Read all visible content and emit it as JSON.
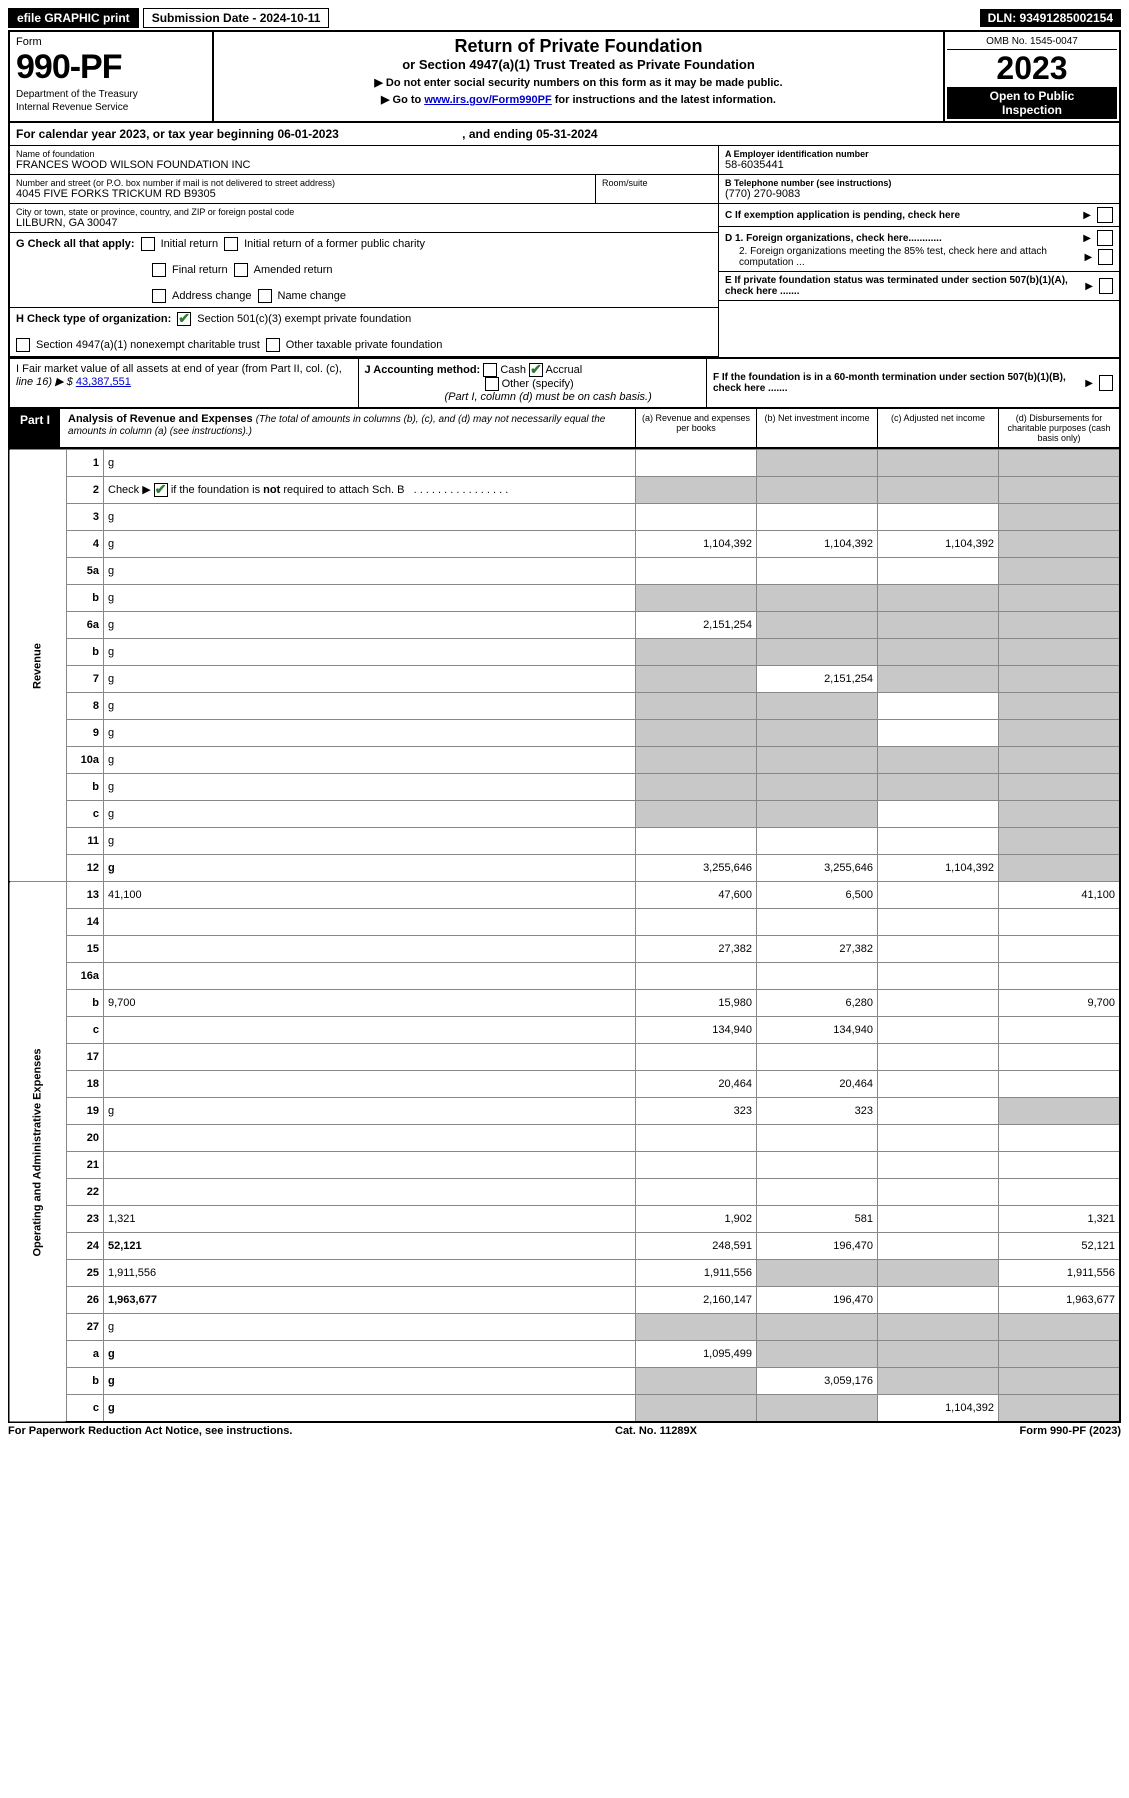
{
  "top": {
    "efile": "efile GRAPHIC print",
    "sub_label": "Submission Date - 2024-10-11",
    "dln": "DLN: 93491285002154"
  },
  "header": {
    "form_label": "Form",
    "form_num": "990-PF",
    "dept1": "Department of the Treasury",
    "dept2": "Internal Revenue Service",
    "title": "Return of Private Foundation",
    "subtitle": "or Section 4947(a)(1) Trust Treated as Private Foundation",
    "note1": "▶ Do not enter social security numbers on this form as it may be made public.",
    "note2_pre": "▶ Go to ",
    "note2_link": "www.irs.gov/Form990PF",
    "note2_post": " for instructions and the latest information.",
    "omb": "OMB No. 1545-0047",
    "year": "2023",
    "open1": "Open to Public",
    "open2": "Inspection"
  },
  "calyear": {
    "text_a": "For calendar year 2023, or tax year beginning 06-01-2023",
    "text_b": ", and ending 05-31-2024"
  },
  "info": {
    "name_lbl": "Name of foundation",
    "name": "FRANCES WOOD WILSON FOUNDATION INC",
    "addr_lbl": "Number and street (or P.O. box number if mail is not delivered to street address)",
    "addr": "4045 FIVE FORKS TRICKUM RD B9305",
    "room_lbl": "Room/suite",
    "city_lbl": "City or town, state or province, country, and ZIP or foreign postal code",
    "city": "LILBURN, GA  30047",
    "ein_lbl": "A Employer identification number",
    "ein": "58-6035441",
    "tel_lbl": "B Telephone number (see instructions)",
    "tel": "(770) 270-9083",
    "c": "C If exemption application is pending, check here",
    "d1": "D 1. Foreign organizations, check here............",
    "d2": "2. Foreign organizations meeting the 85% test, check here and attach computation ...",
    "e": "E  If private foundation status was terminated under section 507(b)(1)(A), check here .......",
    "f": "F  If the foundation is in a 60-month termination under section 507(b)(1)(B), check here .......",
    "g_lbl": "G Check all that apply:",
    "g_opts": [
      "Initial return",
      "Initial return of a former public charity",
      "Final return",
      "Amended return",
      "Address change",
      "Name change"
    ],
    "h_lbl": "H Check type of organization:",
    "h1": "Section 501(c)(3) exempt private foundation",
    "h2": "Section 4947(a)(1) nonexempt charitable trust",
    "h3": "Other taxable private foundation",
    "i_lbl": "I Fair market value of all assets at end of year (from Part II, col. (c),",
    "i_line": "line 16) ▶ $",
    "i_val": "43,387,551",
    "j_lbl": "J Accounting method:",
    "j_cash": "Cash",
    "j_accr": "Accrual",
    "j_other": "Other (specify)",
    "j_note": "(Part I, column (d) must be on cash basis.)"
  },
  "part1": {
    "label": "Part I",
    "title": "Analysis of Revenue and Expenses",
    "note": "(The total of amounts in columns (b), (c), and (d) may not necessarily equal the amounts in column (a) (see instructions).)",
    "col_a": "(a)   Revenue and expenses per books",
    "col_b": "(b)   Net investment income",
    "col_c": "(c)   Adjusted net income",
    "col_d": "(d)   Disbursements for charitable purposes (cash basis only)"
  },
  "sides": {
    "rev": "Revenue",
    "oae": "Operating and Administrative Expenses"
  },
  "rows": [
    {
      "n": "1",
      "d": "g",
      "a": "",
      "b": "g",
      "c": "g"
    },
    {
      "n": "2",
      "d": "g",
      "a": "g",
      "b": "g",
      "c": "g"
    },
    {
      "n": "3",
      "d": "g",
      "a": "",
      "b": "",
      "c": ""
    },
    {
      "n": "4",
      "d": "g",
      "a": "1,104,392",
      "b": "1,104,392",
      "c": "1,104,392"
    },
    {
      "n": "5a",
      "d": "g",
      "a": "",
      "b": "",
      "c": ""
    },
    {
      "n": "b",
      "d": "g",
      "a": "g",
      "b": "g",
      "c": "g"
    },
    {
      "n": "6a",
      "d": "g",
      "a": "2,151,254",
      "b": "g",
      "c": "g"
    },
    {
      "n": "b",
      "d": "g",
      "a": "g",
      "b": "g",
      "c": "g"
    },
    {
      "n": "7",
      "d": "g",
      "a": "g",
      "b": "2,151,254",
      "c": "g"
    },
    {
      "n": "8",
      "d": "g",
      "a": "g",
      "b": "g",
      "c": ""
    },
    {
      "n": "9",
      "d": "g",
      "a": "g",
      "b": "g",
      "c": ""
    },
    {
      "n": "10a",
      "d": "g",
      "a": "g",
      "b": "g",
      "c": "g"
    },
    {
      "n": "b",
      "d": "g",
      "a": "g",
      "b": "g",
      "c": "g"
    },
    {
      "n": "c",
      "d": "g",
      "a": "g",
      "b": "g",
      "c": ""
    },
    {
      "n": "11",
      "d": "g",
      "a": "",
      "b": "",
      "c": ""
    },
    {
      "n": "12",
      "d": "g",
      "a": "3,255,646",
      "b": "3,255,646",
      "c": "1,104,392",
      "bold": true
    },
    {
      "n": "13",
      "d": "41,100",
      "a": "47,600",
      "b": "6,500",
      "c": ""
    },
    {
      "n": "14",
      "d": "",
      "a": "",
      "b": "",
      "c": ""
    },
    {
      "n": "15",
      "d": "",
      "a": "27,382",
      "b": "27,382",
      "c": ""
    },
    {
      "n": "16a",
      "d": "",
      "a": "",
      "b": "",
      "c": ""
    },
    {
      "n": "b",
      "d": "9,700",
      "a": "15,980",
      "b": "6,280",
      "c": ""
    },
    {
      "n": "c",
      "d": "",
      "a": "134,940",
      "b": "134,940",
      "c": ""
    },
    {
      "n": "17",
      "d": "",
      "a": "",
      "b": "",
      "c": ""
    },
    {
      "n": "18",
      "d": "",
      "a": "20,464",
      "b": "20,464",
      "c": ""
    },
    {
      "n": "19",
      "d": "g",
      "a": "323",
      "b": "323",
      "c": ""
    },
    {
      "n": "20",
      "d": "",
      "a": "",
      "b": "",
      "c": ""
    },
    {
      "n": "21",
      "d": "",
      "a": "",
      "b": "",
      "c": ""
    },
    {
      "n": "22",
      "d": "",
      "a": "",
      "b": "",
      "c": ""
    },
    {
      "n": "23",
      "d": "1,321",
      "a": "1,902",
      "b": "581",
      "c": ""
    },
    {
      "n": "24",
      "d": "52,121",
      "a": "248,591",
      "b": "196,470",
      "c": "",
      "bold": true
    },
    {
      "n": "25",
      "d": "1,911,556",
      "a": "1,911,556",
      "b": "g",
      "c": "g"
    },
    {
      "n": "26",
      "d": "1,963,677",
      "a": "2,160,147",
      "b": "196,470",
      "c": "",
      "bold": true
    },
    {
      "n": "27",
      "d": "g",
      "a": "g",
      "b": "g",
      "c": "g"
    },
    {
      "n": "a",
      "d": "g",
      "a": "1,095,499",
      "b": "g",
      "c": "g",
      "bold": true
    },
    {
      "n": "b",
      "d": "g",
      "a": "g",
      "b": "3,059,176",
      "c": "g",
      "bold": true
    },
    {
      "n": "c",
      "d": "g",
      "a": "g",
      "b": "g",
      "c": "1,104,392",
      "bold": true
    }
  ],
  "footer": {
    "left": "For Paperwork Reduction Act Notice, see instructions.",
    "mid": "Cat. No. 11289X",
    "right": "Form 990-PF (2023)"
  }
}
